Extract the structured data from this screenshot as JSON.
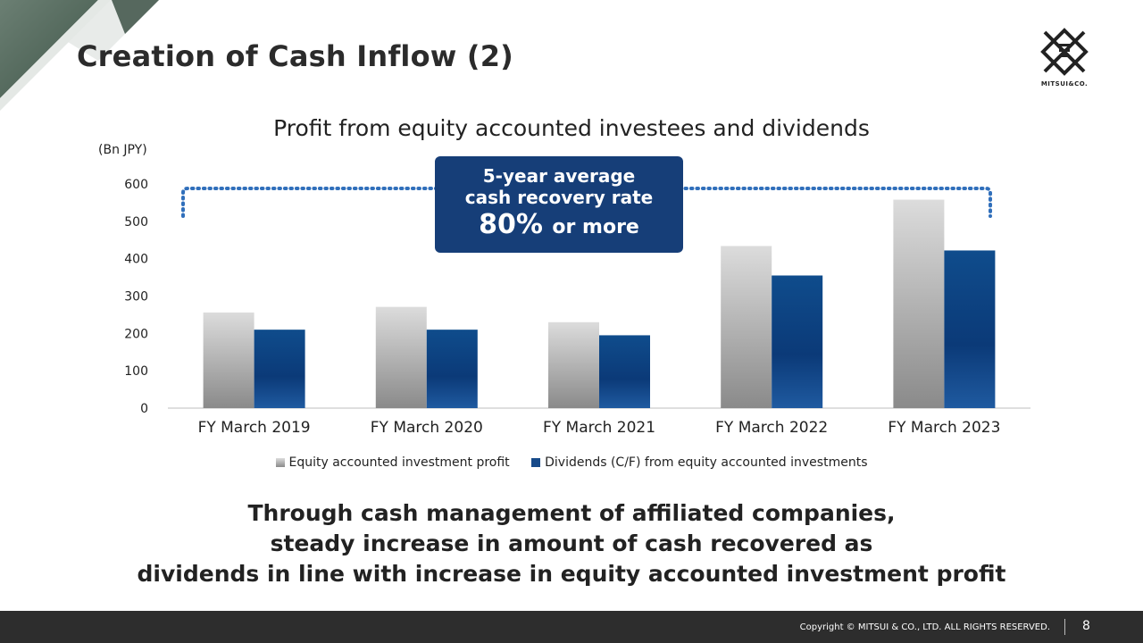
{
  "slide": {
    "title": "Creation of Cash Inflow (2)",
    "logo_text": "MITSUI&CO.",
    "message_lines": [
      "Through cash management of affiliated companies,",
      "steady increase in amount of cash recovered as",
      "dividends in line with increase in equity accounted investment profit"
    ],
    "footer_copyright": "Copyright © MITSUI & CO., LTD. ALL RIGHTS RESERVED.",
    "page_number": "8"
  },
  "callout": {
    "line1": "5-year average",
    "line2": "cash recovery rate",
    "value": "80%",
    "value_suffix": "or more",
    "background": "#163e78"
  },
  "chart_data": {
    "type": "bar",
    "title": "Profit from equity accounted investees and dividends",
    "unit_label": "(Bn JPY)",
    "ylim": [
      0,
      600
    ],
    "yticks": [
      0,
      100,
      200,
      300,
      400,
      500,
      600
    ],
    "grid": false,
    "legend_position": "bottom",
    "categories": [
      "FY March 2019",
      "FY March 2020",
      "FY March 2021",
      "FY March 2022",
      "FY March 2023"
    ],
    "series": [
      {
        "name": "Equity accounted investment profit",
        "values": [
          256,
          271,
          230,
          434,
          558
        ],
        "color": "#a9a9a9"
      },
      {
        "name": "Dividends (C/F) from equity accounted investments",
        "values": [
          210,
          210,
          195,
          355,
          422
        ],
        "color": "#174a8a"
      }
    ]
  }
}
